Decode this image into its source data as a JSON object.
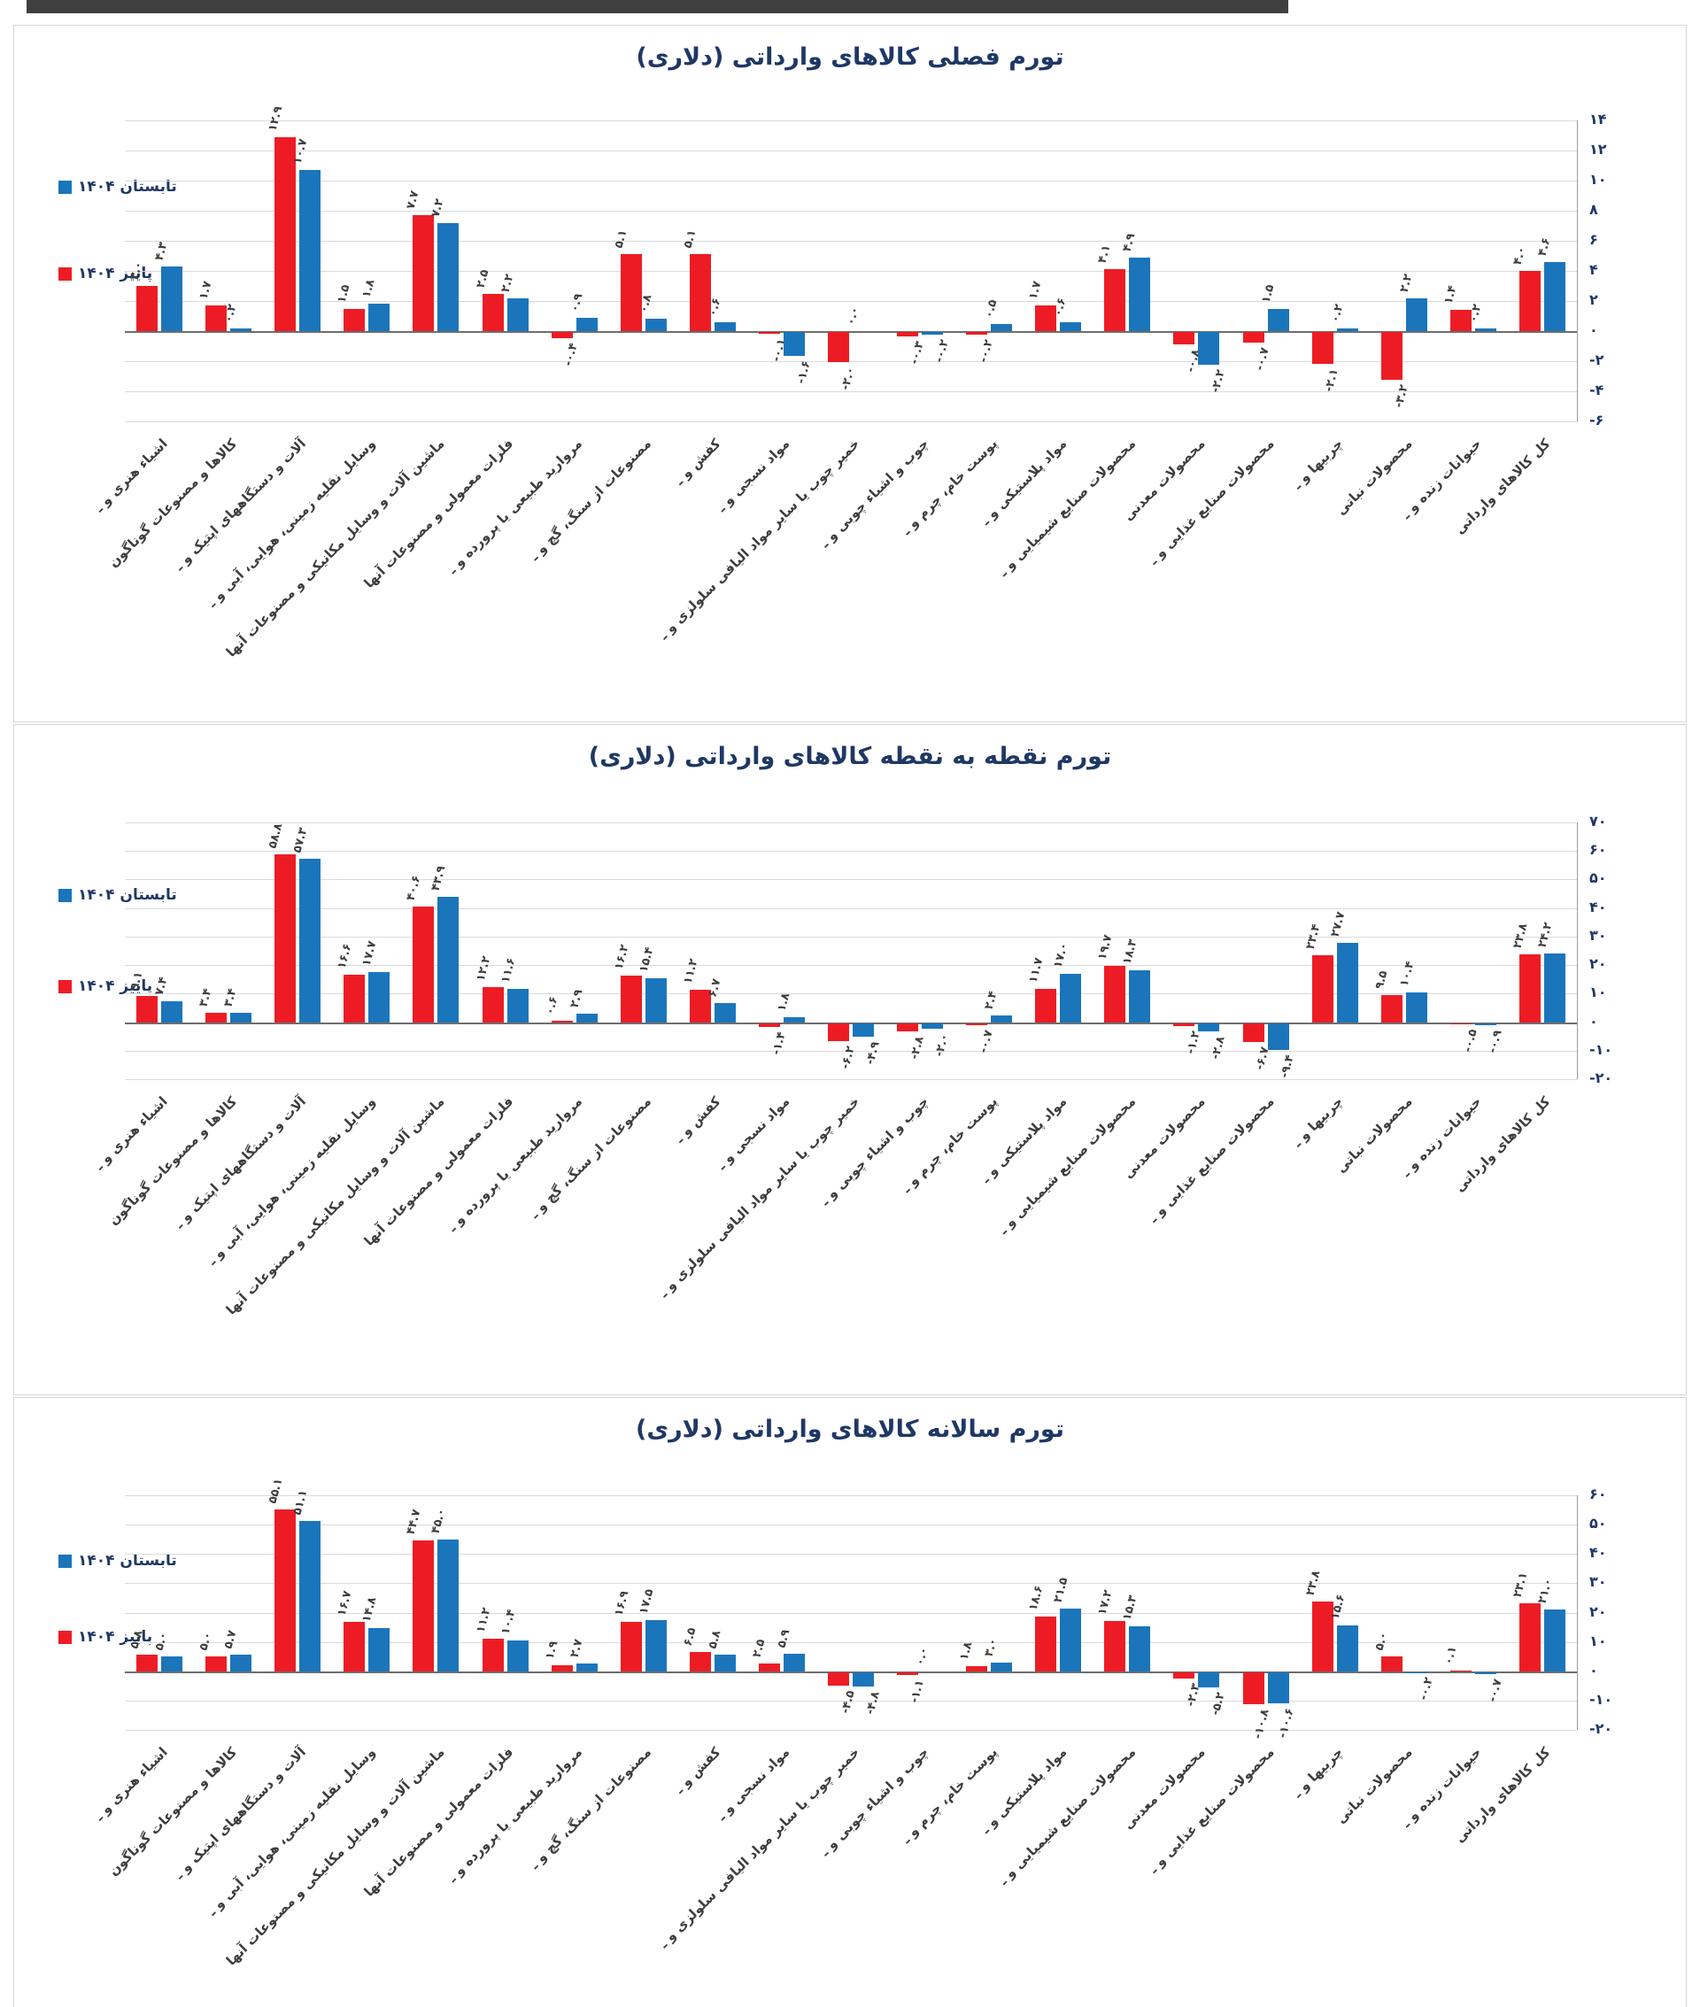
{
  "legend": [
    {
      "label": "تابستان ۱۴۰۴",
      "color": "#1b75bb"
    },
    {
      "label": "پاییز ۱۴۰۴",
      "color": "#ed1c24"
    }
  ],
  "categories": [
    "اشیاء هنری و ـ",
    "کالاها و مصنوعات گوناگون",
    "آلات و دستگاههای اپتیک و ـ",
    "وسایل نقلیه زمینی، هوایی، آبی و ـ",
    "ماشین آلات و وسایل مکانیکی و مصنوعات آنها",
    "فلزات معمولی و مصنوعات آنها",
    "مروارید طبیعی یا پرورده و ـ",
    "مصنوعات از سنگ، گچ و ـ",
    "کفش و ـ",
    "مواد نسجی و ـ",
    "خمیر چوب یا سایر مواد الیافی سلولزی و ـ",
    "چوب و اشیاء چوبی و ـ",
    "پوست خام، چرم و ـ",
    "مواد پلاستیکی و ـ",
    "محصولات صنایع شیمیایی و ـ",
    "محصولات معدنی",
    "محصولات صنایع غذایی و ـ",
    "چربیها و ـ",
    "محصولات نباتی",
    "حیوانات زنده و ـ",
    "کل کالاهای وارداتی"
  ],
  "chart_data": [
    {
      "type": "bar",
      "title": "تورم فصلی کالاهای وارداتی (دلاری)",
      "ylim": [
        -6,
        14
      ],
      "ytick_values": [
        14,
        12,
        10,
        8,
        6,
        4,
        2,
        0,
        -2,
        -4,
        -6
      ],
      "ytick_labels": [
        "۱۴",
        "۱۲",
        "۱۰",
        "۸",
        "۶",
        "۴",
        "۲",
        "۰",
        "-۲",
        "-۴",
        "-۶"
      ],
      "grid": true,
      "legend_position": "left",
      "series": [
        {
          "name": "پاییز ۱۴۰۴",
          "color": "#ed1c24",
          "values": [
            3.0,
            1.7,
            12.9,
            1.5,
            7.7,
            2.5,
            -0.4,
            5.1,
            5.1,
            -0.1,
            -2.0,
            -0.3,
            -0.2,
            1.7,
            4.1,
            -0.8,
            -0.7,
            -2.1,
            -3.2,
            1.4,
            4.0
          ]
        },
        {
          "name": "تابستان ۱۴۰۴",
          "color": "#1b75bb",
          "values": [
            4.3,
            0.2,
            10.7,
            1.8,
            7.2,
            2.2,
            0.9,
            0.8,
            0.6,
            -1.6,
            0.0,
            -0.2,
            0.5,
            0.6,
            4.9,
            -2.2,
            1.5,
            0.2,
            2.2,
            0.2,
            4.6
          ]
        }
      ]
    },
    {
      "type": "bar",
      "title": "تورم نقطه به نقطه کالاهای وارداتی (دلاری)",
      "ylim": [
        -20,
        70
      ],
      "ytick_values": [
        70,
        60,
        50,
        40,
        30,
        20,
        10,
        0,
        -10,
        -20
      ],
      "ytick_labels": [
        "۷۰",
        "۶۰",
        "۵۰",
        "۴۰",
        "۳۰",
        "۲۰",
        "۱۰",
        "۰",
        "-۱۰",
        "-۲۰"
      ],
      "grid": true,
      "legend_position": "left",
      "series": [
        {
          "name": "پاییز ۱۴۰۴",
          "color": "#ed1c24",
          "values": [
            9.1,
            3.4,
            58.8,
            16.6,
            40.6,
            12.2,
            0.6,
            16.2,
            11.2,
            -1.4,
            -6.2,
            -2.8,
            -0.7,
            11.7,
            19.7,
            -1.2,
            -6.7,
            23.4,
            9.5,
            -0.5,
            23.8
          ]
        },
        {
          "name": "تابستان ۱۴۰۴",
          "color": "#1b75bb",
          "values": [
            7.4,
            3.4,
            57.3,
            17.7,
            43.9,
            11.6,
            2.9,
            15.4,
            6.7,
            1.8,
            -4.9,
            -2.0,
            2.4,
            17.0,
            18.3,
            -2.8,
            -9.4,
            27.7,
            10.4,
            -0.9,
            24.2
          ]
        }
      ]
    },
    {
      "type": "bar",
      "title": "تورم سالانه کالاهای وارداتی (دلاری)",
      "ylim": [
        -20,
        60
      ],
      "ytick_values": [
        60,
        50,
        40,
        30,
        20,
        10,
        0,
        -10,
        -20
      ],
      "ytick_labels": [
        "۶۰",
        "۵۰",
        "۴۰",
        "۳۰",
        "۲۰",
        "۱۰",
        "۰",
        "-۱۰",
        "-۲۰"
      ],
      "grid": true,
      "legend_position": "left",
      "series": [
        {
          "name": "پاییز ۱۴۰۴",
          "color": "#ed1c24",
          "values": [
            5.8,
            5.0,
            55.1,
            16.7,
            44.7,
            11.2,
            1.9,
            16.9,
            6.5,
            2.5,
            -4.5,
            -1.1,
            1.8,
            18.6,
            17.2,
            -2.3,
            -10.8,
            23.8,
            5.0,
            0.1,
            23.1
          ]
        },
        {
          "name": "تابستان ۱۴۰۴",
          "color": "#1b75bb",
          "values": [
            5.0,
            5.7,
            51.1,
            14.8,
            45.0,
            10.4,
            2.7,
            17.5,
            5.8,
            5.9,
            -4.8,
            0.0,
            3.0,
            21.5,
            15.3,
            -5.2,
            -10.6,
            15.6,
            -0.2,
            -0.7,
            21.0
          ]
        }
      ]
    }
  ]
}
